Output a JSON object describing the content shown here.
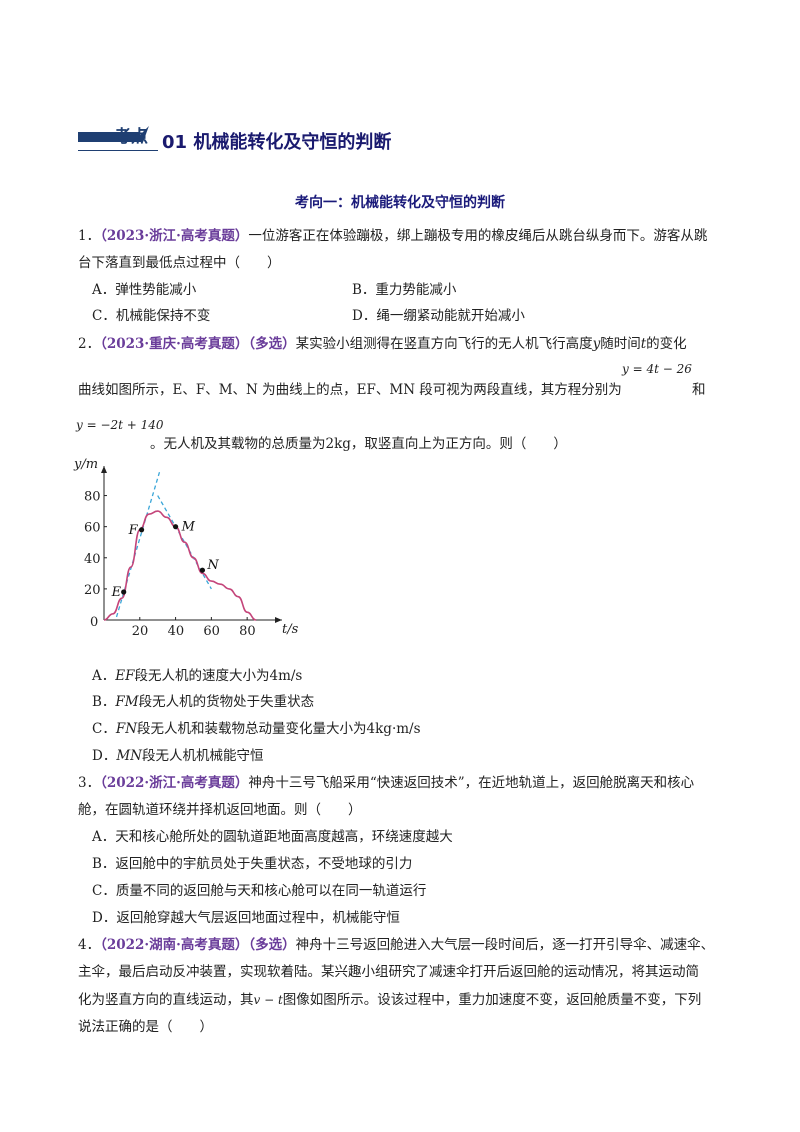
{
  "header": {
    "kaodian": "考点",
    "title": "01 机械能转化及守恒的判断"
  },
  "section_title": "考向一：机械能转化及守恒的判断",
  "questions": [
    {
      "num": "1．",
      "source": "（2023·浙江·高考真题）",
      "line1": "一位游客正在体验蹦极，绑上蹦极专用的橡皮绳后从跳台纵身而下。游客从跳",
      "line2": "台下落直到最低点过程中（　　）",
      "options": {
        "A": "A．弹性势能减小",
        "B": "B．重力势能减小",
        "C": "C．机械能保持不变",
        "D": "D．绳一绷紧动能就开始减小"
      }
    },
    {
      "num": "2．",
      "source": "（2023·重庆·高考真题）",
      "tag": "（多选）",
      "line1": "某实验小组测得在竖直方向飞行的无人机飞行高度",
      "line1_y": "y",
      "line1_mid": "随时间",
      "line1_t": "t",
      "line1_end": "的变化",
      "line2": "曲线如图所示，E、F、M、N 为曲线上的点，EF、MN 段可视为两段直线，其方程分别为",
      "eq1": "y = 4t − 26",
      "line2_end": "和",
      "eq2": "y = −2t + 140",
      "line3": "。无人机及其载物的总质量为2kg，取竖直向上为正方向。则（　　）",
      "options": {
        "A": "段无人机的速度大小为4m/s",
        "A_pre": "A．",
        "A_it": "EF",
        "B": "段无人机的货物处于失重状态",
        "B_pre": "B．",
        "B_it": "FM",
        "C": "段无人机和装载物总动量变化量大小为4kg·m/s",
        "C_pre": "C．",
        "C_it": "FN",
        "D": "段无人机机械能守恒",
        "D_pre": "D．",
        "D_it": "MN"
      }
    },
    {
      "num": "3．",
      "source": "（2022·浙江·高考真题）",
      "line1": "神舟十三号飞船采用“快速返回技术”，在近地轨道上，返回舱脱离天和核心",
      "line2": "舱，在圆轨道环绕并择机返回地面。则（　　）",
      "options": {
        "A": "A．天和核心舱所处的圆轨道距地面高度越高，环绕速度越大",
        "B": "B．返回舱中的宇航员处于失重状态，不受地球的引力",
        "C": "C．质量不同的返回舱与天和核心舱可以在同一轨道运行",
        "D": "D．返回舱穿越大气层返回地面过程中，机械能守恒"
      }
    },
    {
      "num": "4．",
      "source": "（2022·湖南·高考真题）",
      "tag": "（多选）",
      "line1": "神舟十三号返回舱进入大气层一段时间后，逐一打开引导伞、减速伞、",
      "line2": "主伞，最后启动反冲装置，实现软着陆。某兴趣小组研究了减速伞打开后返回舱的运动情况，将其运动简",
      "line3_a": "化为竖直方向的直线运动，其",
      "line3_eq": "v − t",
      "line3_b": "图像如图所示。设该过程中，重力加速度不变，返回舱质量不变，下列",
      "line4": "说法正确的是（　　）"
    }
  ],
  "chart_data": {
    "type": "line",
    "ylabel": "y/m",
    "xlabel": "t/s",
    "xticks": [
      "20",
      "40",
      "60",
      "80"
    ],
    "yticks": [
      "20",
      "40",
      "60",
      "80"
    ],
    "origin_label": "0",
    "xlim": [
      0,
      95
    ],
    "ylim": [
      0,
      90
    ],
    "curve": {
      "x": [
        0,
        5,
        10,
        15,
        20,
        25,
        30,
        35,
        40,
        45,
        50,
        55,
        60,
        65,
        70,
        75,
        80,
        85
      ],
      "y": [
        0,
        4,
        14,
        34,
        58,
        68,
        70,
        66,
        60,
        50,
        40,
        30,
        25,
        23,
        20,
        15,
        5,
        0
      ]
    },
    "line_EF": {
      "label": "y=4t-26",
      "x": [
        7,
        31
      ],
      "y": [
        2,
        98
      ]
    },
    "line_MN": {
      "label": "y=-2t+140",
      "x": [
        30,
        60
      ],
      "y": [
        80,
        20
      ]
    },
    "points": [
      {
        "name": "E",
        "x": 11,
        "y": 18
      },
      {
        "name": "F",
        "x": 21,
        "y": 58
      },
      {
        "name": "M",
        "x": 40,
        "y": 60
      },
      {
        "name": "N",
        "x": 55,
        "y": 32
      }
    ],
    "colors": {
      "curve": "#c4457a",
      "dashed": "#3aa6d8",
      "axis": "#222222"
    }
  }
}
